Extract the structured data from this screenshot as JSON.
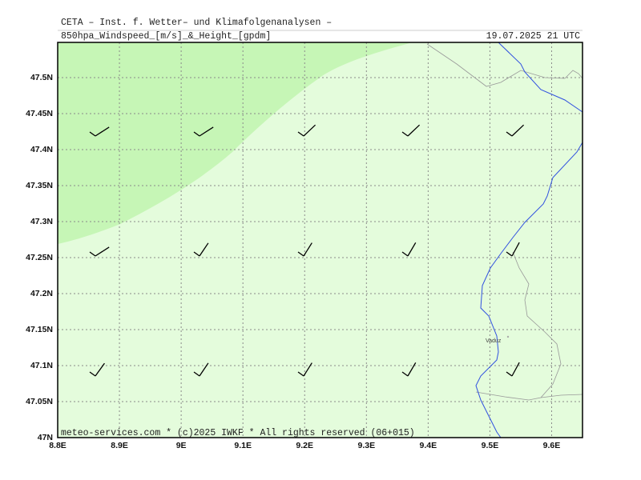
{
  "header": {
    "title": "CETA – Inst. f. Wetter– und Klimafolgenanalysen –",
    "subtitle": "850hpa_Windspeed_[m/s]_&_Height_[gpdm]",
    "timestamp": "19.07.2025 21 UTC"
  },
  "map": {
    "lon_labels": [
      "8.8E",
      "8.9E",
      "9E",
      "9.1E",
      "9.2E",
      "9.3E",
      "9.4E",
      "9.5E",
      "9.6E"
    ],
    "lat_labels": [
      "47N",
      "47.05N",
      "47.1N",
      "47.15N",
      "47.2N",
      "47.25N",
      "47.3N",
      "47.35N",
      "47.4N",
      "47.45N",
      "47.5N"
    ],
    "places": [
      "Vaduz"
    ]
  },
  "footer": "meteo-services.com * (c)2025 IWKF * All rights reserved (06+015)"
}
